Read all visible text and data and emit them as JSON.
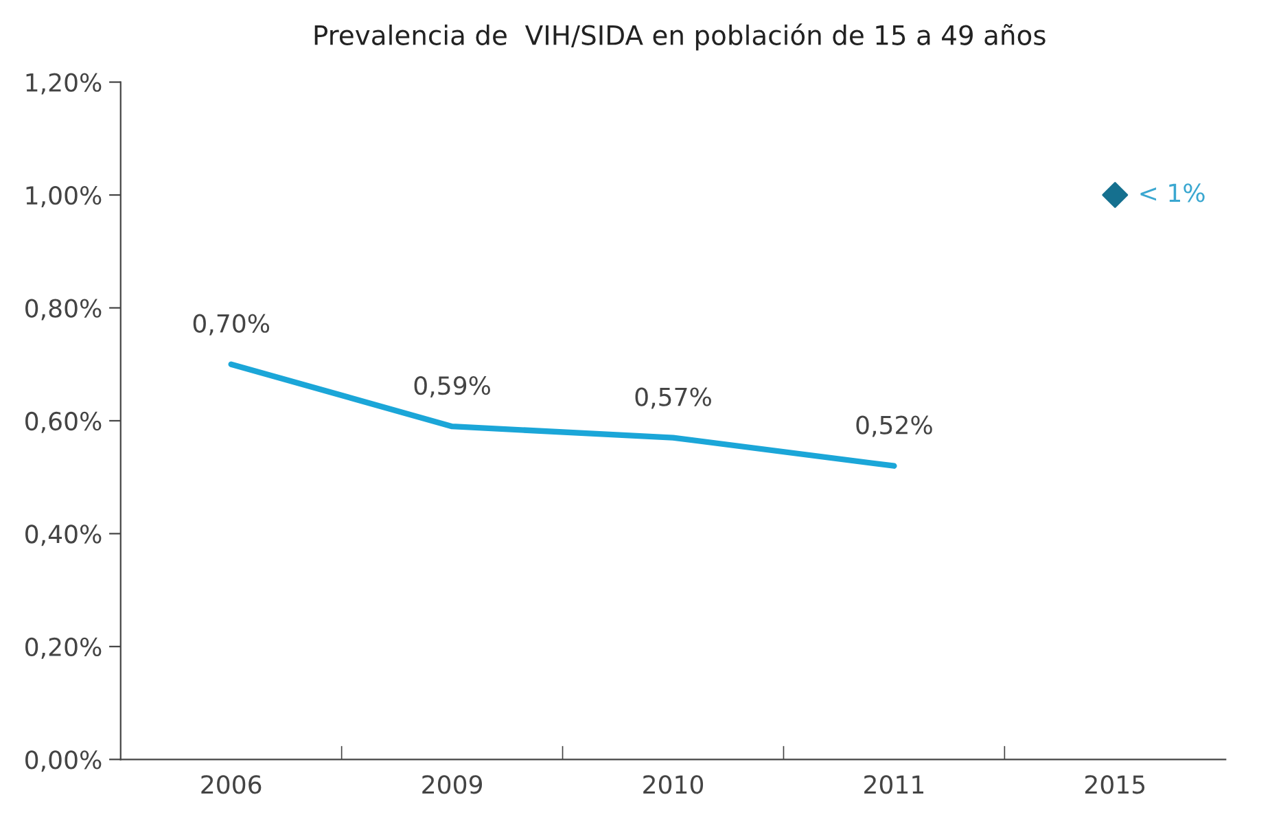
{
  "chart_data": {
    "type": "line",
    "title": "Prevalencia de  VIH/SIDA en población de 15 a 49 años",
    "categories": [
      "2006",
      "2009",
      "2010",
      "2011",
      "2015"
    ],
    "series": [
      {
        "color": "#1ba6d8",
        "values": [
          0.7,
          0.59,
          0.57,
          0.52,
          null
        ],
        "value_labels": [
          "0,70%",
          "0,59%",
          "0,57%",
          "0,52%",
          null
        ],
        "marker": "none"
      },
      {
        "type": "scatter",
        "color": "#15708f",
        "values": [
          null,
          null,
          null,
          null,
          1.0
        ],
        "value_labels": [
          null,
          null,
          null,
          null,
          "< 1%"
        ],
        "marker": "diamond"
      }
    ],
    "ylim": [
      0,
      1.2
    ],
    "yticks": [
      {
        "value": 0,
        "label": "0,00%"
      },
      {
        "value": 0.2,
        "label": "0,20%"
      },
      {
        "value": 0.4,
        "label": "0,40%"
      },
      {
        "value": 0.6,
        "label": "0,60%"
      },
      {
        "value": 0.8,
        "label": "0,80%"
      },
      {
        "value": 1.0,
        "label": "1,00%"
      },
      {
        "value": 1.2,
        "label": "1,20%"
      }
    ],
    "grid": false,
    "legend": false
  }
}
